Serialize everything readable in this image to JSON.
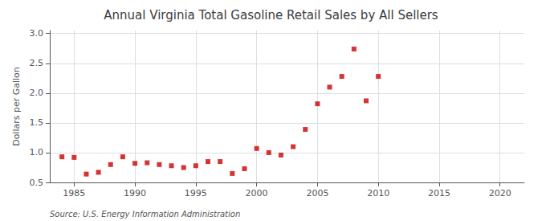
{
  "chart_data": {
    "type": "scatter",
    "title": "Annual Virginia Total Gasoline Retail Sales by All Sellers",
    "ylabel": "Dollars per Gallon",
    "annotation": "Source: U.S. Energy Information Administration",
    "x": [
      1984,
      1985,
      1986,
      1987,
      1988,
      1989,
      1990,
      1991,
      1992,
      1993,
      1994,
      1995,
      1996,
      1997,
      1998,
      1999,
      2000,
      2001,
      2002,
      2003,
      2004,
      2005,
      2006,
      2007,
      2008,
      2009,
      2010
    ],
    "values": [
      0.93,
      0.92,
      0.64,
      0.67,
      0.8,
      0.93,
      0.82,
      0.83,
      0.8,
      0.78,
      0.75,
      0.78,
      0.85,
      0.85,
      0.65,
      0.73,
      1.07,
      1.0,
      0.96,
      1.1,
      1.39,
      1.82,
      2.1,
      2.28,
      2.74,
      1.87,
      2.28
    ],
    "color": "#cc0000",
    "marker": "square",
    "xlim": [
      1983,
      2022
    ],
    "ylim": [
      0.5,
      3.05
    ],
    "xticks": [
      1985,
      1990,
      1995,
      2000,
      2005,
      2010,
      2015,
      2020
    ],
    "yticks": [
      0.5,
      {
        "value": 1.0,
        "label": "1.0"
      },
      1.5,
      {
        "value": 2.0,
        "label": "2.0"
      },
      2.5,
      {
        "value": 3.0,
        "label": "3.0"
      }
    ],
    "grid": true
  }
}
